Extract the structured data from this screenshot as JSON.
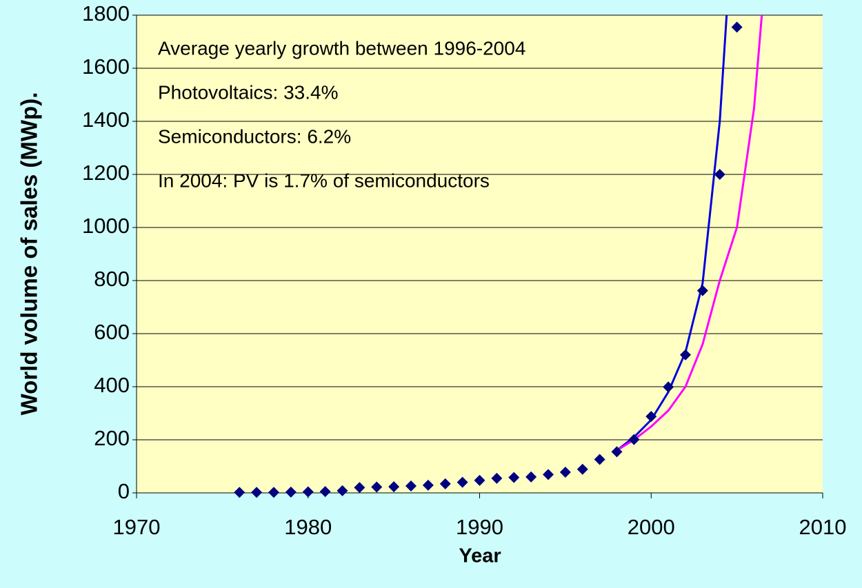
{
  "chart_data": {
    "type": "scatter",
    "x_label": "Year",
    "y_label": "World volume of sales (MWp).",
    "annotations": [
      "Average yearly growth between 1996-2004",
      "Photovoltaics: 33.4%",
      "Semiconductors: 6.2%",
      "In 2004: PV is 1.7% of semiconductors"
    ],
    "xlim": [
      1970,
      2010
    ],
    "xticks": [
      1970,
      1980,
      1990,
      2000,
      2010
    ],
    "ylim": [
      0,
      1800
    ],
    "yticks": [
      0,
      200,
      400,
      600,
      800,
      1000,
      1200,
      1400,
      1600,
      1800
    ],
    "grid": true,
    "series": [
      {
        "mode": "markers",
        "color": "#000080",
        "x": [
          1976,
          1977,
          1978,
          1979,
          1980,
          1981,
          1982,
          1983,
          1984,
          1985,
          1986,
          1987,
          1988,
          1989,
          1990,
          1991,
          1992,
          1993,
          1994,
          1995,
          1996,
          1997,
          1998,
          1999,
          2000,
          2001,
          2002,
          2003,
          2004,
          2005
        ],
        "values": [
          2,
          2,
          2,
          3,
          4,
          5,
          8,
          20,
          22,
          23,
          26,
          29,
          34,
          40,
          47,
          55,
          58,
          60,
          69,
          78,
          89,
          126,
          155,
          201,
          288,
          399,
          520,
          762,
          1200,
          1755
        ]
      },
      {
        "mode": "line",
        "color": "#0000dd",
        "x": [
          1998,
          1999,
          2000,
          2001,
          2002,
          2003,
          2004,
          2004.4
        ],
        "values": [
          160,
          210,
          275,
          380,
          530,
          790,
          1400,
          1800
        ]
      },
      {
        "mode": "line",
        "color": "#ff00ff",
        "x": [
          1998,
          1999,
          2000,
          2001,
          2002,
          2003,
          2004,
          2005,
          2006,
          2006.45
        ],
        "values": [
          160,
          200,
          250,
          310,
          400,
          560,
          800,
          1000,
          1450,
          1800
        ]
      }
    ]
  }
}
